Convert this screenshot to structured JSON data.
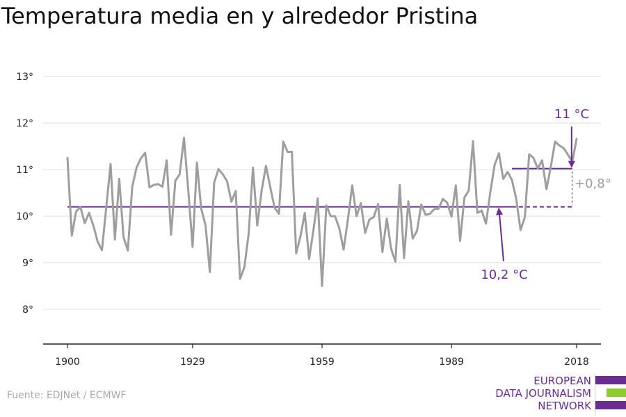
{
  "title": "Temperatura media en y alrededor Pristina",
  "source": "Fuente: EDJNet / ECMWF",
  "logo": {
    "lines": [
      "EUROPEAN",
      "DATA JOURNALISM",
      "NETWORK"
    ],
    "colors": [
      "#6b2c91",
      "#8ccc2b",
      "#6b2c91"
    ]
  },
  "colors": {
    "series": "#9e9e9e",
    "annotation": "#6b2c91",
    "delta": "#9e9e9e",
    "grid": "#dddddd"
  },
  "chart_data": {
    "type": "line",
    "title": "Temperatura media en y alrededor Pristina",
    "xlabel": "",
    "ylabel": "",
    "xlim": [
      1900,
      2018
    ],
    "ylim": [
      7.3,
      13.0
    ],
    "yticks": [
      8,
      9,
      10,
      11,
      12,
      13
    ],
    "ytick_labels": [
      "8°",
      "9°",
      "10°",
      "11°",
      "12°",
      "13°"
    ],
    "xticks": [
      1900,
      1929,
      1959,
      1989,
      2018
    ],
    "xtick_labels": [
      "1900",
      "1929",
      "1959",
      "1989",
      "2018"
    ],
    "grid": true,
    "series": [
      {
        "x": [
          1900,
          1901,
          1902,
          1903,
          1904,
          1905,
          1906,
          1907,
          1908,
          1909,
          1910,
          1911,
          1912,
          1913,
          1914,
          1915,
          1916,
          1917,
          1918,
          1919,
          1920,
          1921,
          1922,
          1923,
          1924,
          1925,
          1926,
          1927,
          1928,
          1929,
          1930,
          1931,
          1932,
          1933,
          1934,
          1935,
          1936,
          1937,
          1938,
          1939,
          1940,
          1941,
          1942,
          1943,
          1944,
          1945,
          1946,
          1947,
          1948,
          1949,
          1950,
          1951,
          1952,
          1953,
          1954,
          1955,
          1956,
          1957,
          1958,
          1959,
          1960,
          1961,
          1962,
          1963,
          1964,
          1965,
          1966,
          1967,
          1968,
          1969,
          1970,
          1971,
          1972,
          1973,
          1974,
          1975,
          1976,
          1977,
          1978,
          1979,
          1980,
          1981,
          1982,
          1983,
          1984,
          1985,
          1986,
          1987,
          1988,
          1989,
          1990,
          1991,
          1992,
          1993,
          1994,
          1995,
          1996,
          1997,
          1998,
          1999,
          2000,
          2001,
          2002,
          2003,
          2004,
          2005,
          2006,
          2007,
          2008,
          2009,
          2010,
          2011,
          2012,
          2013,
          2014,
          2015,
          2016,
          2017,
          2018
        ],
        "values": [
          11.25,
          9.58,
          10.1,
          10.2,
          9.85,
          10.07,
          9.8,
          9.45,
          9.27,
          10.2,
          11.12,
          9.5,
          10.8,
          9.55,
          9.26,
          10.63,
          11.04,
          11.24,
          11.36,
          10.62,
          10.67,
          10.69,
          10.63,
          11.2,
          9.6,
          10.76,
          10.9,
          11.68,
          10.55,
          9.34,
          11.15,
          10.16,
          9.8,
          8.8,
          10.72,
          11.01,
          10.9,
          10.75,
          10.31,
          10.54,
          8.65,
          8.9,
          9.62,
          11.04,
          9.8,
          10.55,
          11.08,
          10.62,
          10.18,
          10.05,
          11.6,
          11.38,
          11.38,
          9.2,
          9.57,
          10.07,
          9.08,
          9.7,
          10.38,
          8.5,
          10.23,
          10.0,
          10.0,
          9.74,
          9.28,
          9.93,
          10.66,
          10.0,
          10.28,
          9.64,
          9.93,
          9.98,
          10.26,
          9.23,
          9.95,
          9.3,
          9.02,
          10.67,
          9.1,
          10.32,
          9.52,
          9.68,
          10.25,
          10.03,
          10.05,
          10.15,
          10.16,
          10.37,
          10.29,
          9.99,
          10.66,
          9.47,
          10.4,
          10.55,
          11.61,
          10.07,
          10.12,
          9.84,
          10.51,
          11.1,
          11.35,
          10.8,
          10.95,
          10.78,
          10.37,
          9.7,
          9.98,
          11.33,
          11.25,
          11.02,
          11.2,
          10.58,
          11.05,
          11.6,
          11.52,
          11.46,
          11.32,
          11.17,
          11.66
        ]
      }
    ],
    "annotations": {
      "baseline": {
        "value": 10.2,
        "x_from": 1900,
        "x_to": 2003,
        "label": "10,2 °C"
      },
      "recent": {
        "value": 11.02,
        "x_from": 2003,
        "x_to": 2017,
        "label": "11 °C"
      },
      "delta_label": "+0,8°"
    }
  }
}
